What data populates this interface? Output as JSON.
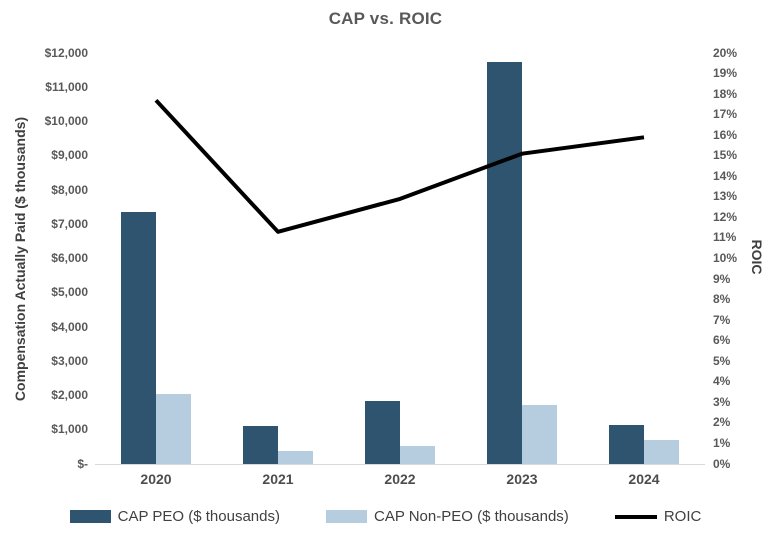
{
  "title": "CAP vs. ROIC",
  "chart_data": {
    "type": "combo-bar-line",
    "title": "CAP vs. ROIC",
    "categories": [
      "2020",
      "2021",
      "2022",
      "2023",
      "2024"
    ],
    "series": [
      {
        "name": "CAP PEO ($ thousands)",
        "kind": "bar",
        "axis": "left",
        "color": "#2E546F",
        "values": [
          7350,
          1100,
          1850,
          11730,
          1150
        ]
      },
      {
        "name": "CAP Non-PEO ($ thousands)",
        "kind": "bar",
        "axis": "left",
        "color": "#B5CDDE",
        "values": [
          2040,
          380,
          520,
          1730,
          710
        ]
      },
      {
        "name": "ROIC",
        "kind": "line",
        "axis": "right",
        "color": "#000000",
        "unit": "%",
        "values": [
          17.7,
          11.3,
          12.9,
          15.1,
          15.9
        ]
      }
    ],
    "left_axis": {
      "title": "Compensation Actually Paid ($ thousands)",
      "min": 0,
      "max": 12000,
      "step": 1000,
      "tick_labels": [
        "$12,000",
        "$11,000",
        "$10,000",
        "$9,000",
        "$8,000",
        "$7,000",
        "$6,000",
        "$5,000",
        "$4,000",
        "$3,000",
        "$2,000",
        "$1,000",
        "$-"
      ]
    },
    "right_axis": {
      "title": "ROIC",
      "min": 0,
      "max": 20,
      "step": 1,
      "unit": "%",
      "tick_labels": [
        "20%",
        "19%",
        "18%",
        "17%",
        "16%",
        "15%",
        "14%",
        "13%",
        "12%",
        "11%",
        "10%",
        "9%",
        "8%",
        "7%",
        "6%",
        "5%",
        "4%",
        "3%",
        "2%",
        "1%",
        "0%"
      ]
    },
    "legend": {
      "position": "bottom",
      "items": [
        {
          "label": "CAP PEO ($ thousands)",
          "swatch": "bar",
          "color": "#2E546F"
        },
        {
          "label": "CAP Non-PEO ($ thousands)",
          "swatch": "bar",
          "color": "#B5CDDE"
        },
        {
          "label": "ROIC",
          "swatch": "line",
          "color": "#000000"
        }
      ]
    },
    "grid": false,
    "background": "#FFFFFF"
  }
}
